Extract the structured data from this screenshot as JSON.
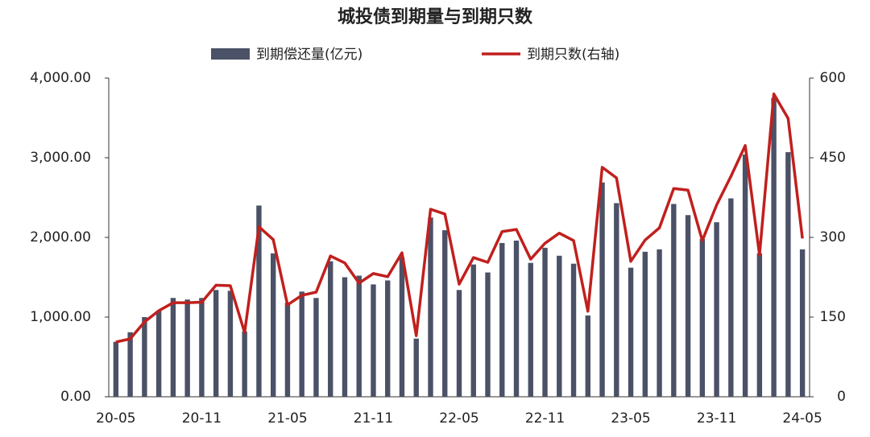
{
  "chart_data": {
    "type": "bar_line",
    "title": "城投债到期量与到期只数",
    "categories": [
      "20-05",
      null,
      null,
      null,
      null,
      null,
      "20-11",
      null,
      null,
      null,
      null,
      null,
      "21-05",
      null,
      null,
      null,
      null,
      null,
      "21-11",
      null,
      null,
      null,
      null,
      null,
      "22-05",
      null,
      null,
      null,
      null,
      null,
      "22-11",
      null,
      null,
      null,
      null,
      null,
      "23-05",
      null,
      null,
      null,
      null,
      null,
      "23-11",
      null,
      null,
      null,
      null,
      null,
      "24-05"
    ],
    "series": [
      {
        "name": "到期偿还量(亿元)",
        "type": "bar",
        "color": "#4b5166",
        "values": [
          690,
          810,
          1000,
          1080,
          1240,
          1220,
          1240,
          1340,
          1330,
          820,
          2400,
          1800,
          1180,
          1320,
          1240,
          1700,
          1500,
          1520,
          1410,
          1460,
          1750,
          730,
          2250,
          2090,
          1340,
          1660,
          1560,
          1930,
          1960,
          1680,
          1870,
          1770,
          1670,
          1020,
          2690,
          2430,
          1620,
          1820,
          1850,
          2420,
          2280,
          1980,
          2190,
          2490,
          3040,
          1800,
          3750,
          3070,
          1850
        ]
      },
      {
        "name": "到期只数(右轴)",
        "type": "line",
        "axis": "y2",
        "color": "#c0201e",
        "values": [
          103,
          109,
          141,
          162,
          177,
          177,
          178,
          210,
          209,
          121,
          320,
          296,
          173,
          191,
          197,
          265,
          252,
          214,
          232,
          226,
          271,
          115,
          353,
          344,
          212,
          262,
          253,
          311,
          315,
          259,
          289,
          308,
          294,
          161,
          432,
          412,
          255,
          295,
          318,
          392,
          389,
          294,
          361,
          415,
          473,
          267,
          570,
          524,
          298
        ]
      }
    ],
    "ylim": [
      0,
      4000
    ],
    "yticks": [
      {
        "value": 0,
        "label": "0.00"
      },
      {
        "value": 1000,
        "label": "1,000.00"
      },
      {
        "value": 2000,
        "label": "2,000.00"
      },
      {
        "value": 3000,
        "label": "3,000.00"
      },
      {
        "value": 4000,
        "label": "4,000.00"
      }
    ],
    "y2lim": [
      0,
      600
    ],
    "y2ticks": [
      0,
      150,
      300,
      450,
      600
    ],
    "legend": "top"
  }
}
